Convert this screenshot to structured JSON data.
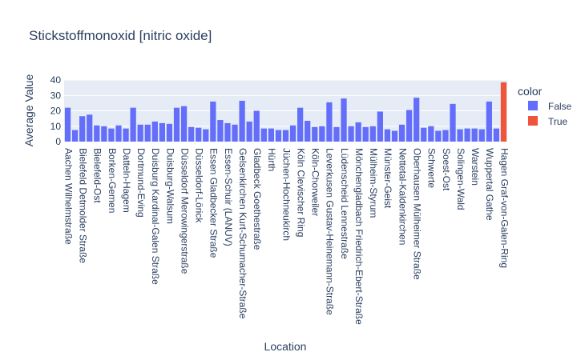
{
  "chart_data": {
    "type": "bar",
    "title": "Stickstoffmonoxid [nitric oxide]",
    "xlabel": "Location",
    "ylabel": "Average Value",
    "ylim": [
      0,
      40
    ],
    "yticks": [
      0,
      10,
      20,
      30,
      40
    ],
    "grid": true,
    "legend": {
      "title": "color",
      "placement": "right",
      "entries": [
        {
          "name": "False",
          "color": "#636efa"
        },
        {
          "name": "True",
          "color": "#ef553b"
        }
      ]
    },
    "categories": [
      "Aachen Wilhelmstraße",
      "",
      "Bielefeld Detmolder Straße",
      "",
      "Bielefeld-Ost",
      "",
      "Borken-Gemen",
      "",
      "Datteln-Hagem",
      "",
      "Dortmund-Eving",
      "",
      "Duisburg Kardinal-Galen Straße",
      "",
      "Duisburg-Walsum",
      "",
      "Düsseldorf Merowingerstraße",
      "",
      "Düsseldorf-Lörick",
      "",
      "Essen Gladbecker Straße",
      "",
      "Essen-Schuir (LANUV)",
      "",
      "Gelsenkirchen Kurt-Schumacher-Straße",
      "",
      "Gladbeck Goethestraße",
      "",
      "Hürth",
      "",
      "Jüchen-Hochneukirch",
      "",
      "Köln Clevischer Ring",
      "",
      "Köln-Chorweiler",
      "",
      "Leverkusen Gustav-Heinemann-Straße",
      "",
      "Lüdenscheid Lennestraße",
      "",
      "Mönchengladbach Friedrich-Ebert-Straße",
      "",
      "Mülheim-Styrum",
      "",
      "Münster-Geist",
      "",
      "Nettetal-Kaldenkirchen",
      "",
      "Oberhausen Mülheimer Straße",
      "",
      "Schwerte",
      "",
      "Soest-Ost",
      "",
      "Solingen-Wald",
      "",
      "Warstein",
      "",
      "Wuppertal Gathe",
      "",
      "Hagen Graf-von-Galen-Ring"
    ],
    "values": [
      22,
      7.5,
      16.5,
      17.5,
      10.5,
      10,
      8.5,
      10.5,
      8.5,
      22,
      11,
      11,
      13,
      12,
      11.5,
      22,
      23,
      9.5,
      9,
      8,
      26,
      14,
      12,
      11,
      26.5,
      13,
      20,
      8.5,
      8.5,
      7.5,
      7.5,
      10.5,
      22,
      13.5,
      9.5,
      10,
      25.5,
      9.5,
      28,
      10,
      12.5,
      9.5,
      10,
      19.5,
      8,
      7,
      11,
      20.5,
      28.5,
      9,
      10,
      7,
      7.5,
      24.5,
      8,
      8.5,
      8.5,
      8,
      26,
      8.5,
      38.5
    ],
    "highlight": [
      false,
      false,
      false,
      false,
      false,
      false,
      false,
      false,
      false,
      false,
      false,
      false,
      false,
      false,
      false,
      false,
      false,
      false,
      false,
      false,
      false,
      false,
      false,
      false,
      false,
      false,
      false,
      false,
      false,
      false,
      false,
      false,
      false,
      false,
      false,
      false,
      false,
      false,
      false,
      false,
      false,
      false,
      false,
      false,
      false,
      false,
      false,
      false,
      false,
      false,
      false,
      false,
      false,
      false,
      false,
      false,
      false,
      false,
      false,
      false,
      true
    ],
    "colors": {
      "false": "#636efa",
      "true": "#ef553b",
      "plot_bg": "#e5ecf6",
      "grid": "#ffffff",
      "text": "#2a3f5f"
    }
  }
}
